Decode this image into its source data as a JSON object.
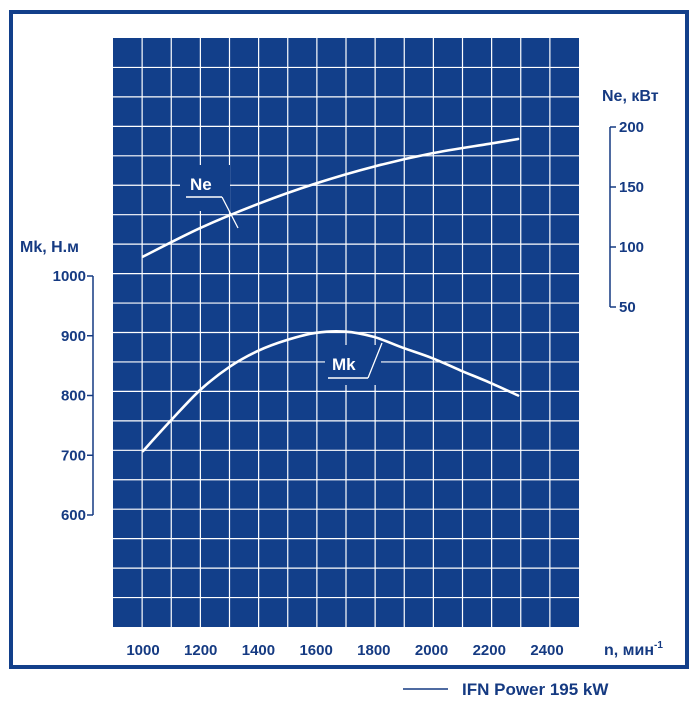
{
  "chart_data": {
    "type": "line",
    "x_axis": {
      "label": "n, мин",
      "label_superscript": "-1",
      "ticks": [
        "1000",
        "1200",
        "1400",
        "1600",
        "1800",
        "2000",
        "2200",
        "2400"
      ],
      "range": [
        1000,
        2400
      ]
    },
    "left_axis": {
      "label": "Mk, Н.м",
      "ticks": [
        "1000",
        "900",
        "800",
        "700",
        "600"
      ],
      "range": [
        600,
        1000
      ]
    },
    "right_axis": {
      "label": "Ne, кВт",
      "ticks": [
        "200",
        "150",
        "100",
        "50"
      ],
      "range": [
        50,
        200
      ]
    },
    "series": [
      {
        "name": "Ne",
        "axis": "right",
        "x": [
          1000,
          1200,
          1400,
          1600,
          1800,
          2000,
          2200,
          2300
        ],
        "y": [
          92,
          116,
          136,
          153,
          167,
          178,
          186,
          190
        ]
      },
      {
        "name": "Mk",
        "axis": "left",
        "x": [
          1000,
          1100,
          1200,
          1300,
          1400,
          1500,
          1600,
          1700,
          1800,
          1900,
          2000,
          2100,
          2200,
          2300
        ],
        "y": [
          707,
          760,
          810,
          848,
          875,
          893,
          905,
          907,
          898,
          880,
          863,
          842,
          822,
          800
        ]
      }
    ],
    "legend": {
      "placement": "bottom-right",
      "entries": [
        "IFN Power 195 kW"
      ]
    },
    "colors": {
      "plot_background": "#123f8a",
      "frame": "#123f8a",
      "grid": "#ffffff",
      "curve": "#ffffff",
      "text": "#153a82"
    }
  }
}
